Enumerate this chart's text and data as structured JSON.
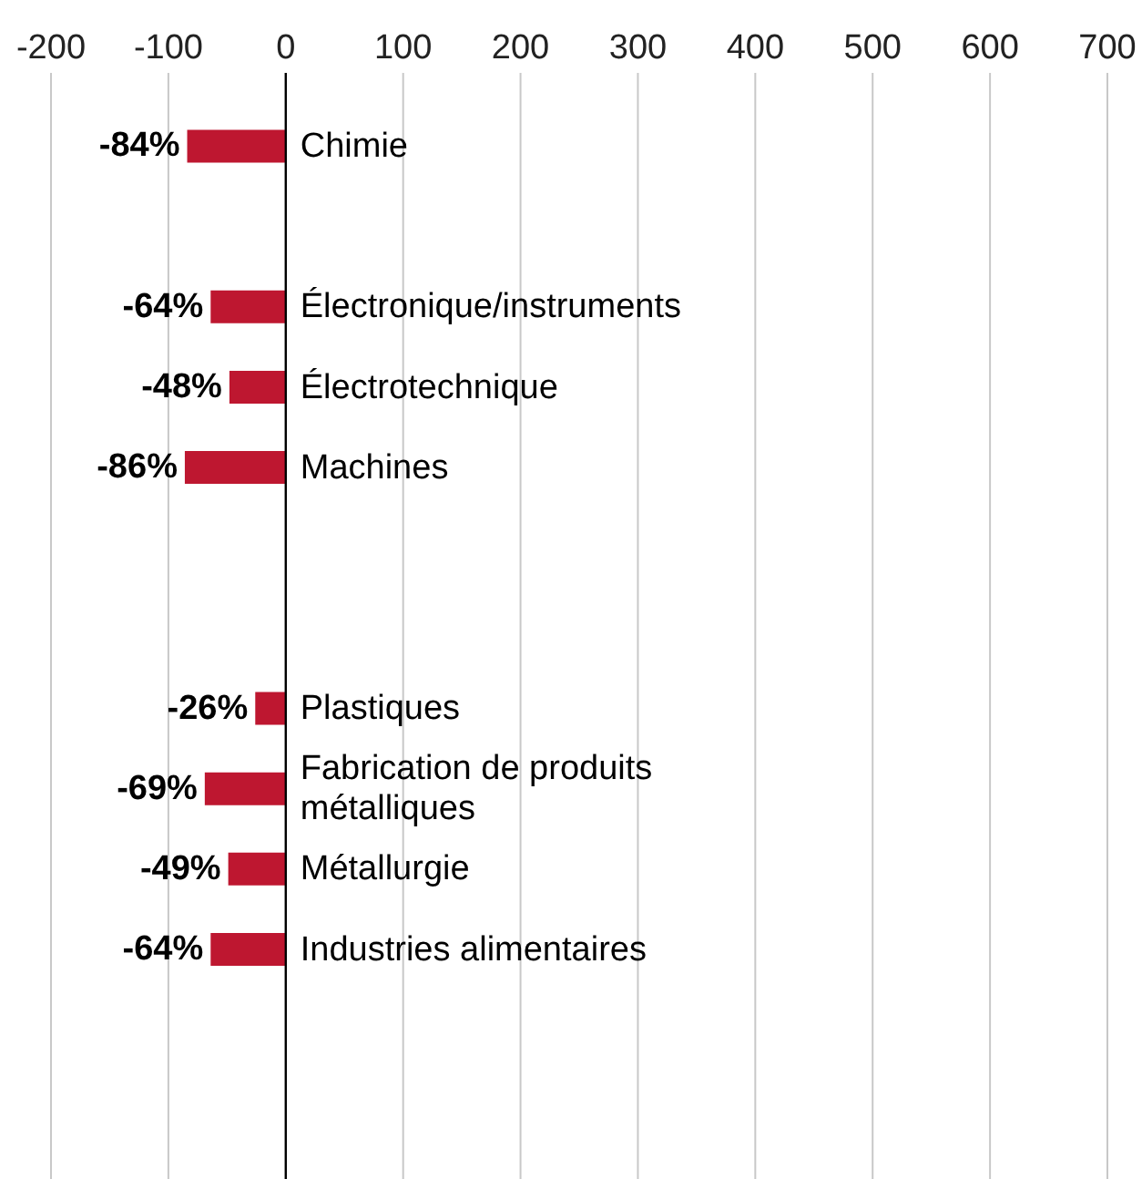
{
  "chart_data": {
    "type": "bar",
    "orientation": "horizontal",
    "categories": [
      "Chimie",
      null,
      "Électronique/instruments",
      "Électrotechnique",
      "Machines",
      null,
      null,
      "Plastiques",
      "Fabrication de produits métalliques",
      "Métallurgie",
      "Industries alimentaires",
      null,
      null
    ],
    "values": [
      -84,
      null,
      -64,
      -48,
      -86,
      null,
      null,
      -26,
      -69,
      -49,
      -64,
      null,
      null
    ],
    "value_labels": [
      "-84%",
      null,
      "-64%",
      "-48%",
      "-86%",
      null,
      null,
      "-26%",
      "-69%",
      "-49%",
      "-64%",
      null,
      null
    ],
    "color": "#be1730",
    "xlim": [
      -200,
      700
    ],
    "xticks": [
      -200,
      -100,
      0,
      100,
      200,
      300,
      400,
      500,
      600,
      700
    ],
    "grid": "x"
  }
}
